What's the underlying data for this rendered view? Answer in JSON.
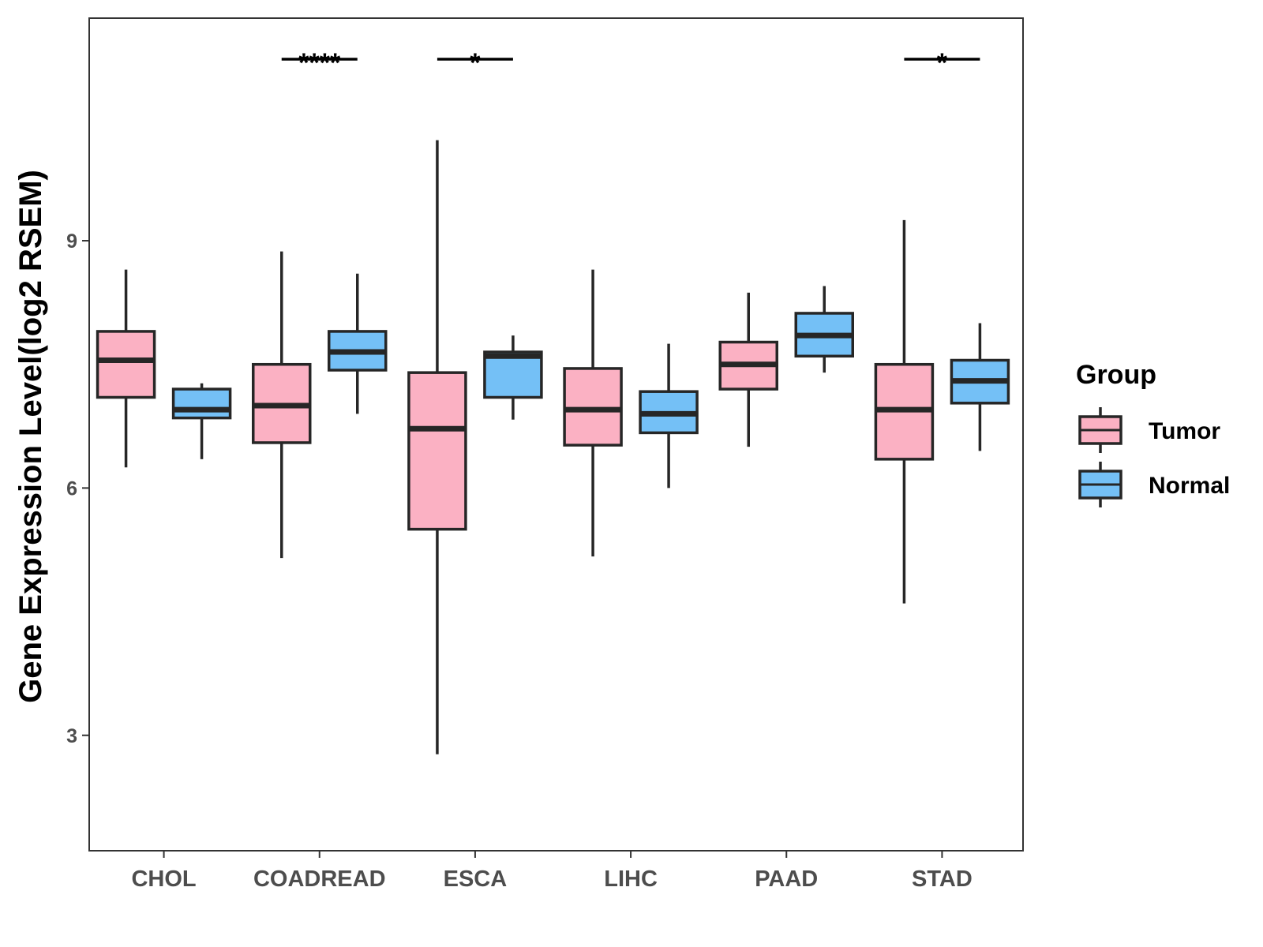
{
  "chart_data": {
    "type": "box",
    "title": "",
    "xlabel": "",
    "ylabel": "Gene Expression Level(log2 RSEM)",
    "ylim": [
      1.6,
      11.7
    ],
    "yticks": [
      3,
      6,
      9
    ],
    "grid": false,
    "legend": {
      "title": "Group",
      "position": "right",
      "entries": [
        {
          "name": "Tumor",
          "color": "#FBB1C3"
        },
        {
          "name": "Normal",
          "color": "#74C0F6"
        }
      ]
    },
    "categories": [
      "CHOL",
      "COADREAD",
      "ESCA",
      "LIHC",
      "PAAD",
      "STAD"
    ],
    "series": [
      {
        "name": "Tumor",
        "color": "#FBB1C3",
        "boxes": [
          {
            "min": 6.25,
            "q1": 7.1,
            "median": 7.55,
            "q3": 7.9,
            "max": 8.65
          },
          {
            "min": 5.15,
            "q1": 6.55,
            "median": 7.0,
            "q3": 7.5,
            "max": 8.87
          },
          {
            "min": 2.77,
            "q1": 5.5,
            "median": 6.72,
            "q3": 7.4,
            "max": 10.22
          },
          {
            "min": 5.17,
            "q1": 6.52,
            "median": 6.95,
            "q3": 7.45,
            "max": 8.65
          },
          {
            "min": 6.5,
            "q1": 7.2,
            "median": 7.5,
            "q3": 7.77,
            "max": 8.37
          },
          {
            "min": 4.6,
            "q1": 6.35,
            "median": 6.95,
            "q3": 7.5,
            "max": 9.25
          }
        ]
      },
      {
        "name": "Normal",
        "color": "#74C0F6",
        "boxes": [
          {
            "min": 6.35,
            "q1": 6.85,
            "median": 6.95,
            "q3": 7.2,
            "max": 7.27
          },
          {
            "min": 6.9,
            "q1": 7.43,
            "median": 7.65,
            "q3": 7.9,
            "max": 8.6
          },
          {
            "min": 6.83,
            "q1": 7.1,
            "median": 7.6,
            "q3": 7.65,
            "max": 7.85
          },
          {
            "min": 6.0,
            "q1": 6.67,
            "median": 6.9,
            "q3": 7.17,
            "max": 7.75
          },
          {
            "min": 7.4,
            "q1": 7.6,
            "median": 7.85,
            "q3": 8.12,
            "max": 8.45
          },
          {
            "min": 6.45,
            "q1": 7.03,
            "median": 7.3,
            "q3": 7.55,
            "max": 8.0
          }
        ]
      }
    ],
    "significance": [
      {
        "category": "COADREAD",
        "label": "****"
      },
      {
        "category": "ESCA",
        "label": "*"
      },
      {
        "category": "STAD",
        "label": "*"
      }
    ]
  }
}
